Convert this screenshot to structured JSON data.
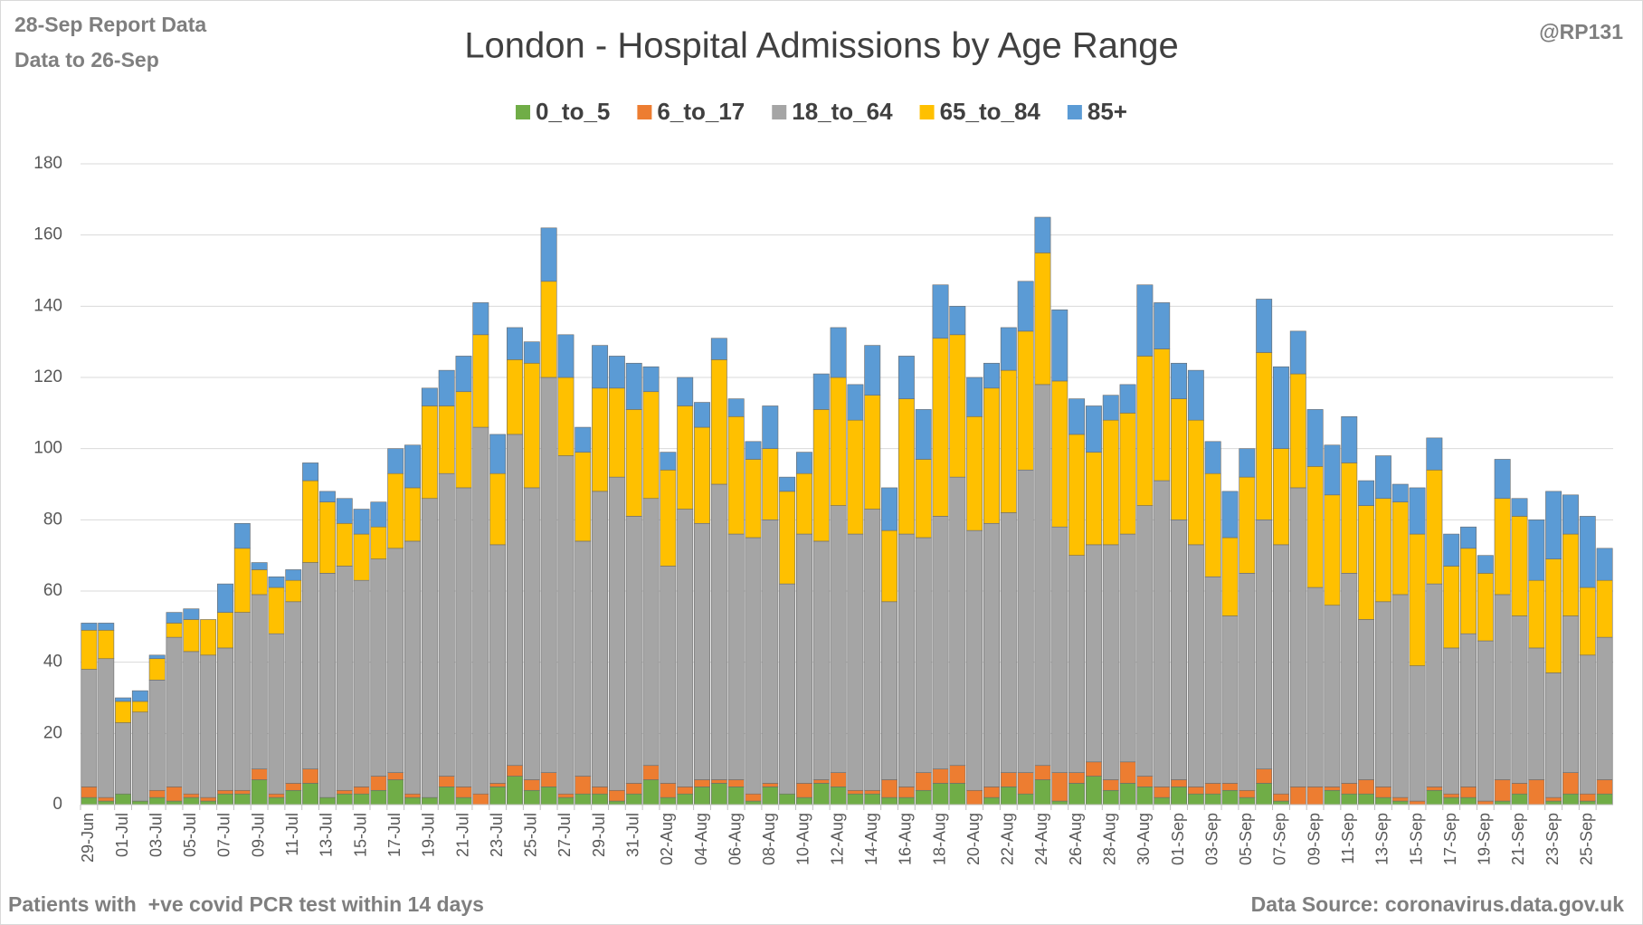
{
  "chart_data": {
    "type": "bar",
    "stacked": true,
    "title": "London - Hospital Admissions by Age Range",
    "notes": {
      "report": "28-Sep Report Data",
      "data_to": "Data to 26-Sep",
      "handle": "@RP131",
      "footnote": "Patients with  +ve covid PCR test within 14 days",
      "source": "Data Source: coronavirus.data.gov.uk"
    },
    "legend": "top",
    "grid": true,
    "ylim": [
      0,
      180
    ],
    "yticks": [
      0,
      20,
      40,
      60,
      80,
      100,
      120,
      140,
      160,
      180
    ],
    "categories": [
      "29-Jun",
      null,
      "01-Jul",
      null,
      "03-Jul",
      null,
      "05-Jul",
      null,
      "07-Jul",
      null,
      "09-Jul",
      null,
      "11-Jul",
      null,
      "13-Jul",
      null,
      "15-Jul",
      null,
      "17-Jul",
      null,
      "19-Jul",
      null,
      "21-Jul",
      null,
      "23-Jul",
      null,
      "25-Jul",
      null,
      "27-Jul",
      null,
      "29-Jul",
      null,
      "31-Jul",
      null,
      "02-Aug",
      null,
      "04-Aug",
      null,
      "06-Aug",
      null,
      "08-Aug",
      null,
      "10-Aug",
      null,
      "12-Aug",
      null,
      "14-Aug",
      null,
      "16-Aug",
      null,
      "18-Aug",
      null,
      "20-Aug",
      null,
      "22-Aug",
      null,
      "24-Aug",
      null,
      "26-Aug",
      null,
      "28-Aug",
      null,
      "30-Aug",
      null,
      "01-Sep",
      null,
      "03-Sep",
      null,
      "05-Sep",
      null,
      "07-Sep",
      null,
      "09-Sep",
      null,
      "11-Sep",
      null,
      "13-Sep",
      null,
      "15-Sep",
      null,
      "17-Sep",
      null,
      "19-Sep",
      null,
      "21-Sep",
      null,
      "23-Sep",
      null,
      "25-Sep",
      null
    ],
    "series": [
      {
        "name": "0_to_5",
        "color": "#70ad47",
        "values": [
          2,
          1,
          3,
          1,
          2,
          1,
          2,
          1,
          3,
          3,
          7,
          2,
          4,
          6,
          2,
          3,
          3,
          4,
          7,
          2,
          2,
          5,
          2,
          0,
          5,
          8,
          4,
          5,
          2,
          3,
          3,
          1,
          3,
          7,
          2,
          3,
          5,
          6,
          5,
          1,
          5,
          3,
          2,
          6,
          5,
          3,
          3,
          2,
          2,
          4,
          6,
          6,
          0,
          2,
          5,
          3,
          7,
          1,
          6,
          8,
          4,
          6,
          5,
          2,
          5,
          3,
          3,
          4,
          2,
          6,
          1,
          0,
          0,
          4,
          3,
          3,
          2,
          1,
          0,
          4,
          2,
          2,
          0,
          1,
          3,
          0,
          1,
          3,
          1,
          3
        ]
      },
      {
        "name": "6_to_17",
        "color": "#ed7d31",
        "values": [
          3,
          1,
          0,
          0,
          2,
          4,
          1,
          1,
          1,
          1,
          3,
          1,
          2,
          4,
          0,
          1,
          2,
          4,
          2,
          1,
          0,
          3,
          3,
          3,
          1,
          3,
          3,
          4,
          1,
          5,
          2,
          3,
          3,
          4,
          4,
          2,
          2,
          1,
          2,
          2,
          1,
          0,
          4,
          1,
          4,
          1,
          1,
          5,
          3,
          5,
          4,
          5,
          4,
          3,
          4,
          6,
          4,
          8,
          3,
          4,
          3,
          6,
          3,
          3,
          2,
          2,
          3,
          2,
          2,
          4,
          2,
          5,
          5,
          1,
          3,
          4,
          3,
          1,
          1,
          1,
          1,
          3,
          1,
          6,
          3,
          7,
          1,
          6,
          2,
          4
        ]
      },
      {
        "name": "18_to_64",
        "color": "#a5a5a5",
        "values": [
          33,
          39,
          20,
          25,
          31,
          42,
          40,
          40,
          40,
          50,
          49,
          45,
          51,
          58,
          63,
          63,
          58,
          61,
          63,
          71,
          84,
          85,
          84,
          103,
          67,
          93,
          82,
          111,
          95,
          66,
          83,
          88,
          75,
          75,
          61,
          78,
          72,
          83,
          69,
          72,
          74,
          59,
          70,
          67,
          75,
          72,
          79,
          50,
          71,
          66,
          71,
          81,
          73,
          74,
          73,
          85,
          107,
          69,
          61,
          61,
          66,
          64,
          76,
          86,
          73,
          68,
          58,
          47,
          61,
          70,
          70,
          84,
          56,
          51,
          59,
          45,
          52,
          57,
          38,
          57,
          41,
          43,
          45,
          52,
          47,
          37,
          35,
          44,
          39,
          40
        ]
      },
      {
        "name": "65_to_84",
        "color": "#ffc000",
        "values": [
          11,
          8,
          6,
          3,
          6,
          4,
          9,
          10,
          10,
          18,
          7,
          13,
          6,
          23,
          20,
          12,
          13,
          9,
          21,
          15,
          26,
          19,
          27,
          26,
          20,
          21,
          35,
          27,
          22,
          25,
          29,
          25,
          30,
          30,
          27,
          29,
          27,
          35,
          33,
          22,
          20,
          26,
          17,
          37,
          36,
          32,
          32,
          20,
          38,
          22,
          50,
          40,
          32,
          38,
          40,
          39,
          37,
          41,
          34,
          26,
          35,
          34,
          42,
          37,
          34,
          35,
          29,
          22,
          27,
          47,
          27,
          32,
          34,
          31,
          31,
          32,
          29,
          26,
          37,
          32,
          23,
          24,
          19,
          27,
          28,
          19,
          32,
          23,
          19,
          16
        ]
      },
      {
        "name": "85+",
        "color": "#5b9bd5",
        "values": [
          2,
          2,
          1,
          3,
          1,
          3,
          3,
          0,
          8,
          7,
          2,
          3,
          3,
          5,
          3,
          7,
          7,
          7,
          7,
          12,
          5,
          10,
          10,
          9,
          11,
          9,
          6,
          15,
          12,
          7,
          12,
          9,
          13,
          7,
          5,
          8,
          7,
          6,
          5,
          5,
          12,
          4,
          6,
          10,
          14,
          10,
          14,
          12,
          12,
          14,
          15,
          8,
          11,
          7,
          12,
          14,
          10,
          20,
          10,
          13,
          7,
          8,
          20,
          13,
          10,
          14,
          9,
          13,
          8,
          15,
          23,
          12,
          16,
          14,
          13,
          7,
          12,
          5,
          13,
          9,
          9,
          6,
          5,
          11,
          5,
          17,
          19,
          11,
          20,
          9
        ]
      }
    ]
  }
}
